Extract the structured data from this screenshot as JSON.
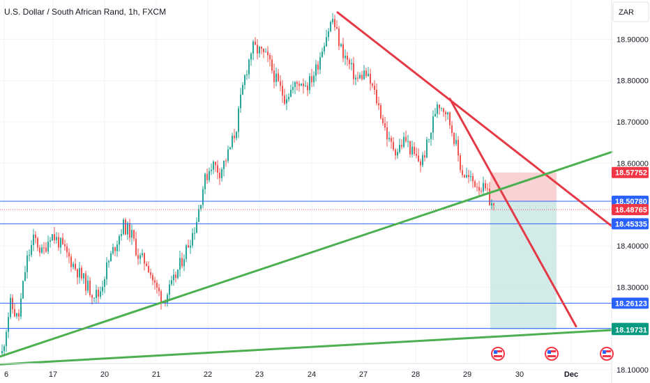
{
  "header": {
    "title": "U.S. Dollar / South African Rand, 1h, FXCM"
  },
  "currency_button": {
    "label": "ZAR"
  },
  "colors": {
    "up": "#26a69a",
    "down": "#ef5350",
    "trend_red": "#e53945",
    "trend_green": "#4caf50",
    "hline_blue": "#2962ff",
    "stop_zone": "#f7c3c6",
    "target_zone": "#cde9e5",
    "price_tag_red": "#f23645",
    "price_tag_blue": "#2962ff",
    "price_tag_green": "#089981"
  },
  "chart_data": {
    "type": "candlestick",
    "symbol": "USDZAR",
    "timeframe": "1h",
    "x_ticks": [
      "6",
      "17",
      "20",
      "21",
      "22",
      "23",
      "24",
      "27",
      "28",
      "29",
      "30",
      "Dec"
    ],
    "y_ticks": [
      "18.90000",
      "18.80000",
      "18.70000",
      "18.60000",
      "18.40000",
      "18.30000",
      "18.20000",
      "18.10000"
    ],
    "ylim": [
      18.068,
      18.995
    ],
    "close_path": [
      18.14,
      18.26,
      18.22,
      18.36,
      18.42,
      18.38,
      18.43,
      18.41,
      18.38,
      18.35,
      18.32,
      18.29,
      18.28,
      18.35,
      18.4,
      18.45,
      18.43,
      18.37,
      18.36,
      18.3,
      18.27,
      18.3,
      18.35,
      18.4,
      18.45,
      18.55,
      18.6,
      18.58,
      18.62,
      18.68,
      18.8,
      18.88,
      18.87,
      18.85,
      18.8,
      18.76,
      18.78,
      18.8,
      18.79,
      18.83,
      18.9,
      18.95,
      18.88,
      18.84,
      18.8,
      18.82,
      18.78,
      18.72,
      18.65,
      18.63,
      18.66,
      18.62,
      18.6,
      18.66,
      18.75,
      18.73,
      18.67,
      18.58,
      18.56,
      18.55,
      18.53,
      18.49
    ],
    "price_tags": [
      {
        "label": "18.57752",
        "value": 18.57752,
        "color": "red"
      },
      {
        "label": "18.50780",
        "value": 18.5078,
        "color": "blue"
      },
      {
        "label": "18.48765",
        "value": 18.48765,
        "color": "red"
      },
      {
        "label": "18.45335",
        "value": 18.45335,
        "color": "blue"
      },
      {
        "label": "18.26123",
        "value": 18.26123,
        "color": "blue"
      },
      {
        "label": "18.20000",
        "value": 18.2,
        "color": "green"
      },
      {
        "label": "18.19731",
        "value": 18.19731,
        "color": "green"
      }
    ],
    "horizontal_lines": [
      18.5078,
      18.45335,
      18.26123,
      18.2
    ],
    "current_price": 18.48765,
    "short_position": {
      "entry": 18.5078,
      "stop": 18.57752,
      "target": 18.19731
    },
    "trendlines": [
      {
        "color": "red",
        "from": {
          "x": "24",
          "y": 18.965
        },
        "to": {
          "x": "30",
          "y": 18.448
        }
      },
      {
        "color": "red",
        "from": {
          "x": "28",
          "y": 18.756
        },
        "to": {
          "x": "30",
          "y": 18.205
        }
      },
      {
        "color": "green",
        "from": {
          "x": "6",
          "y": 18.132
        },
        "to": {
          "x": "Dec",
          "y": 18.627
        }
      },
      {
        "color": "green",
        "from": {
          "x": "6",
          "y": 18.113
        },
        "to": {
          "x": "Dec",
          "y": 18.196
        }
      }
    ],
    "event_markers": [
      "US",
      "US",
      "US"
    ]
  }
}
